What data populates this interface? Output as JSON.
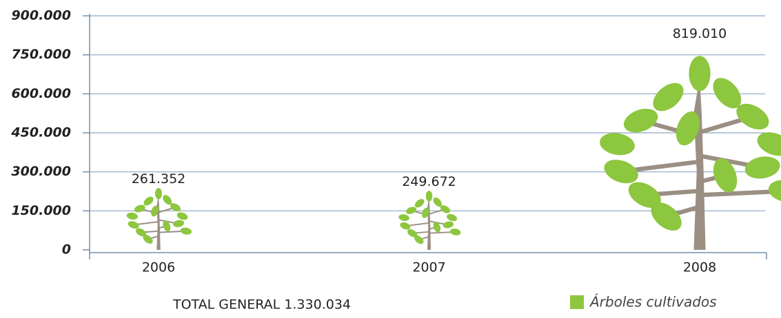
{
  "chart_data": {
    "type": "pictograph",
    "categories": [
      "2006",
      "2007",
      "2008"
    ],
    "series": [
      {
        "name": "Árboles cultivados",
        "color": "#8dc63f",
        "values": [
          261352,
          249672,
          819010
        ],
        "value_labels": [
          "261.352",
          "249.672",
          "819.010"
        ]
      }
    ],
    "ylim": [
      0,
      900000
    ],
    "yticks": [
      0,
      {
        "value": 150000,
        "label": "150.000"
      },
      {
        "value": 300000,
        "label": "300.000"
      },
      {
        "value": 450000,
        "label": "450.000"
      },
      {
        "value": 600000,
        "label": "600.000"
      },
      {
        "value": 750000,
        "label": "750.000"
      },
      {
        "value": 900000,
        "label": "900.000"
      }
    ],
    "grid": true,
    "annotation": "TOTAL GENERAL 1.330.034"
  }
}
